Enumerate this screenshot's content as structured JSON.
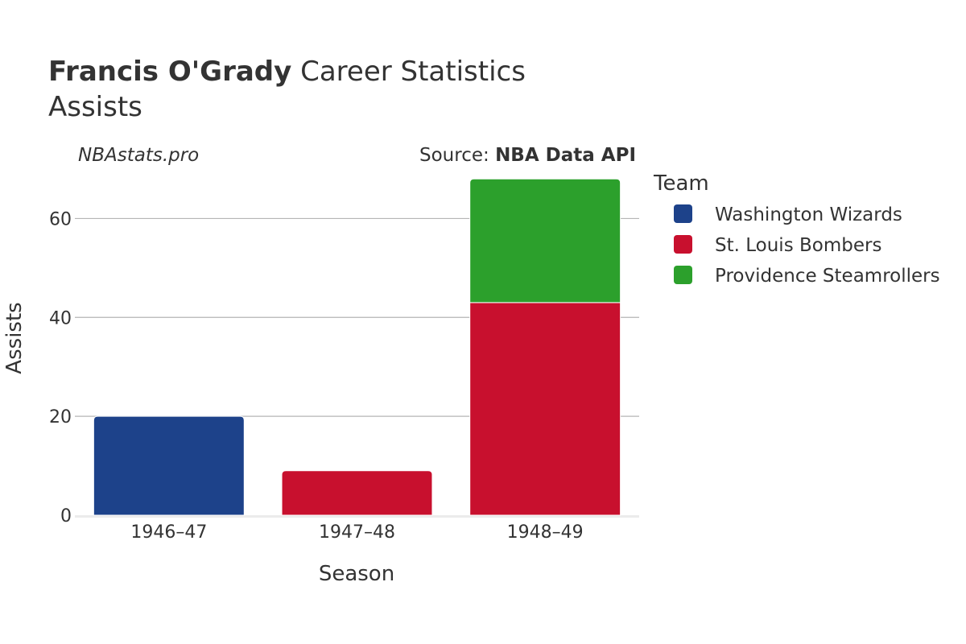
{
  "chart_data": {
    "type": "bar",
    "stacked": true,
    "title_bold": "Francis O'Grady",
    "title_rest": "Career Statistics",
    "subtitle": "Assists",
    "watermark": "NBAstats.pro",
    "source_prefix": "Source: ",
    "source_name": "NBA Data API",
    "xlabel": "Season",
    "ylabel": "Assists",
    "categories": [
      "1946–47",
      "1947–48",
      "1948–49"
    ],
    "ylim": [
      0,
      70
    ],
    "yticks": [
      0,
      20,
      40,
      60
    ],
    "grid": true,
    "legend_title": "Team",
    "legend_position": "right",
    "series": [
      {
        "name": "Washington Wizards",
        "color": "#1d428a",
        "values": [
          20,
          0,
          0
        ]
      },
      {
        "name": "St. Louis Bombers",
        "color": "#c8102e",
        "values": [
          0,
          9,
          43
        ]
      },
      {
        "name": "Providence Steamrollers",
        "color": "#2ca02c",
        "values": [
          0,
          0,
          25
        ]
      }
    ]
  }
}
